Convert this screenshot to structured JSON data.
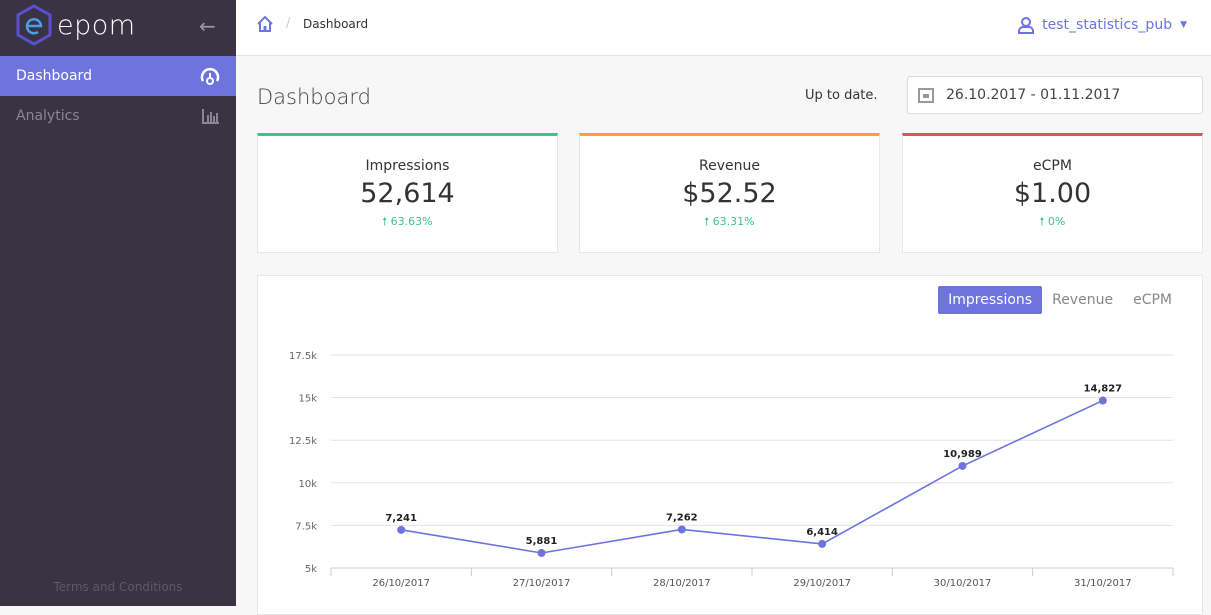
{
  "sidebar": {
    "brand": "epom",
    "items": [
      {
        "label": "Dashboard",
        "icon": "gauge-icon"
      },
      {
        "label": "Analytics",
        "icon": "bar-chart-icon"
      }
    ],
    "footer": "Terms and Conditions"
  },
  "header": {
    "breadcrumb": "Dashboard",
    "user": "test_statistics_pub"
  },
  "page": {
    "title": "Dashboard",
    "status": "Up to date.",
    "date_range": "26.10.2017 - 01.11.2017"
  },
  "cards": [
    {
      "label": "Impressions",
      "value": "52,614",
      "change": "63.63%",
      "color": "#3cc48b"
    },
    {
      "label": "Revenue",
      "value": "$52.52",
      "change": "63.31%",
      "color": "#f5a623"
    },
    {
      "label": "eCPM",
      "value": "$1.00",
      "change": "0%",
      "color": "#e8504b"
    }
  ],
  "chart_tabs": [
    "Impressions",
    "Revenue",
    "eCPM"
  ],
  "chart_data": {
    "type": "line",
    "title": "",
    "series": [
      {
        "name": "Impressions",
        "values": [
          7241,
          5881,
          7262,
          6414,
          10989,
          14827
        ],
        "labels": [
          "7,241",
          "5,881",
          "7,262",
          "6,414",
          "10,989",
          "14,827"
        ]
      }
    ],
    "categories": [
      "26/10/2017",
      "27/10/2017",
      "28/10/2017",
      "29/10/2017",
      "30/10/2017",
      "31/10/2017"
    ],
    "ylim": [
      5000,
      17500
    ],
    "yticks": [
      5000,
      7500,
      10000,
      12500,
      15000,
      17500
    ],
    "ytick_labels": [
      "5k",
      "7.5k",
      "10k",
      "12.5k",
      "15k",
      "17.5k"
    ],
    "grid": true,
    "color": "#6d74de"
  }
}
